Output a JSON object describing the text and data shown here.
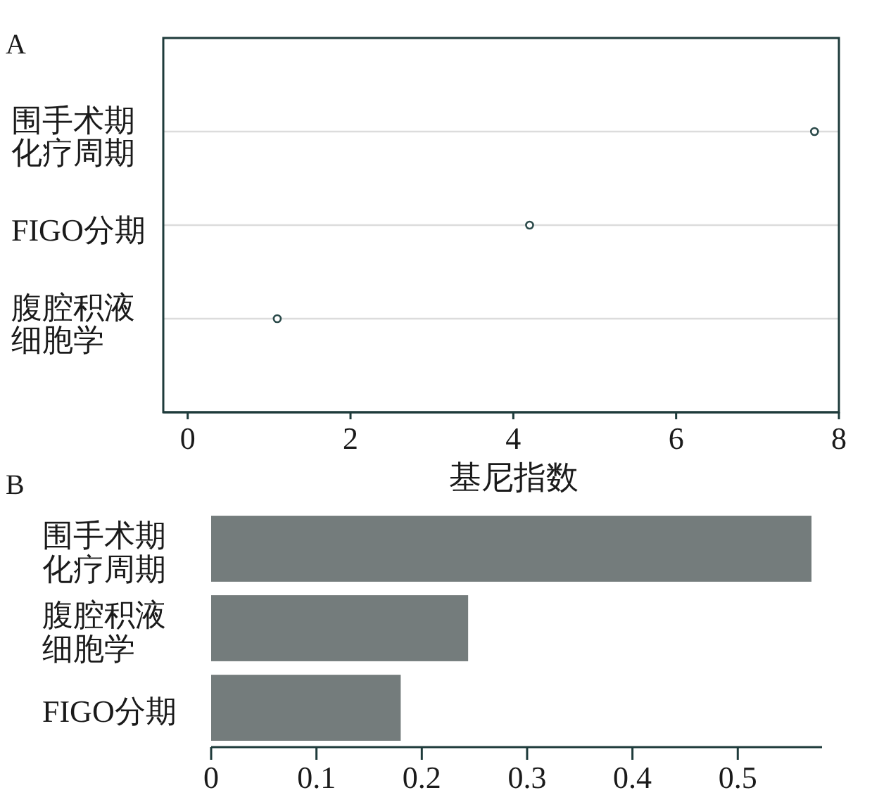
{
  "chart_data": [
    {
      "type": "scatter",
      "title": "A",
      "orientation": "horizontal",
      "categories": [
        "围手术期化疗周期",
        "FIGO分期",
        "腹腔积液细胞学"
      ],
      "values": [
        7.7,
        4.2,
        1.1
      ],
      "color": "#2b4a4a",
      "marker": "circle",
      "grid": "y",
      "xlim": [
        -0.3,
        8
      ],
      "xticks": [
        0,
        2,
        4,
        6,
        8
      ],
      "xlabel": "基尼指数"
    },
    {
      "type": "bar",
      "title": "B",
      "orientation": "horizontal",
      "categories": [
        "围手术期化疗周期",
        "腹腔积液细胞学",
        "FIGO分期"
      ],
      "values": [
        0.57,
        0.244,
        0.18
      ],
      "color": "#747c7c",
      "xlim": [
        0,
        0.58
      ],
      "xticks": [
        0,
        0.1,
        0.2,
        0.3,
        0.4,
        0.5
      ]
    }
  ]
}
